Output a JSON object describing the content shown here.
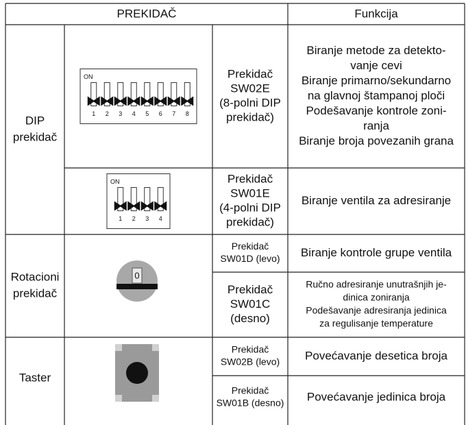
{
  "header": {
    "switch": "PREKIDAČ",
    "function": "Funkcija"
  },
  "groups": [
    {
      "label": [
        "DIP",
        "prekidač"
      ],
      "rows": [
        {
          "switch": {
            "on": "ON",
            "numbers": [
              "1",
              "2",
              "3",
              "4",
              "5",
              "6",
              "7",
              "8"
            ]
          },
          "name": [
            "Prekidač",
            "SW02E",
            "(8-polni DIP",
            "prekidač)"
          ],
          "function": [
            "Biranje metode za detekto-",
            "vanje cevi",
            "Biranje primarno/sekundarno",
            "na glavnoj štampanoj ploči",
            "Podešavanje kontrole zoni-",
            "ranja",
            "Biranje broja povezanih grana"
          ]
        },
        {
          "switch": {
            "on": "ON",
            "numbers": [
              "1",
              "2",
              "3",
              "4"
            ]
          },
          "name": [
            "Prekidač",
            "SW01E",
            "(4-polni DIP",
            "prekidač)"
          ],
          "function": [
            "Biranje ventila za adresiranje"
          ]
        }
      ]
    },
    {
      "label": [
        "Rotacioni",
        "prekidač"
      ],
      "rows": [
        {
          "switch": {
            "position": "0"
          },
          "name": [
            "Prekidač",
            "SW01D (levo)"
          ],
          "function": [
            "Biranje kontrole grupe ventila"
          ]
        },
        {
          "name": [
            "Prekidač",
            "SW01C",
            "(desno)"
          ],
          "function": [
            "Ručno adresiranje unutrašnjih je-",
            "dinica zoniranja",
            "Podešavanje adresiranja jedinica",
            "za regulisanje temperature"
          ]
        }
      ]
    },
    {
      "label": [
        "Taster"
      ],
      "rows": [
        {
          "name": [
            "Prekidač",
            "SW02B (levo)"
          ],
          "function": [
            "Povećavanje desetica broja"
          ]
        },
        {
          "name": [
            "Prekidač",
            "SW01B (desno)"
          ],
          "function": [
            "Povećavanje jedinica broja"
          ]
        }
      ]
    }
  ]
}
